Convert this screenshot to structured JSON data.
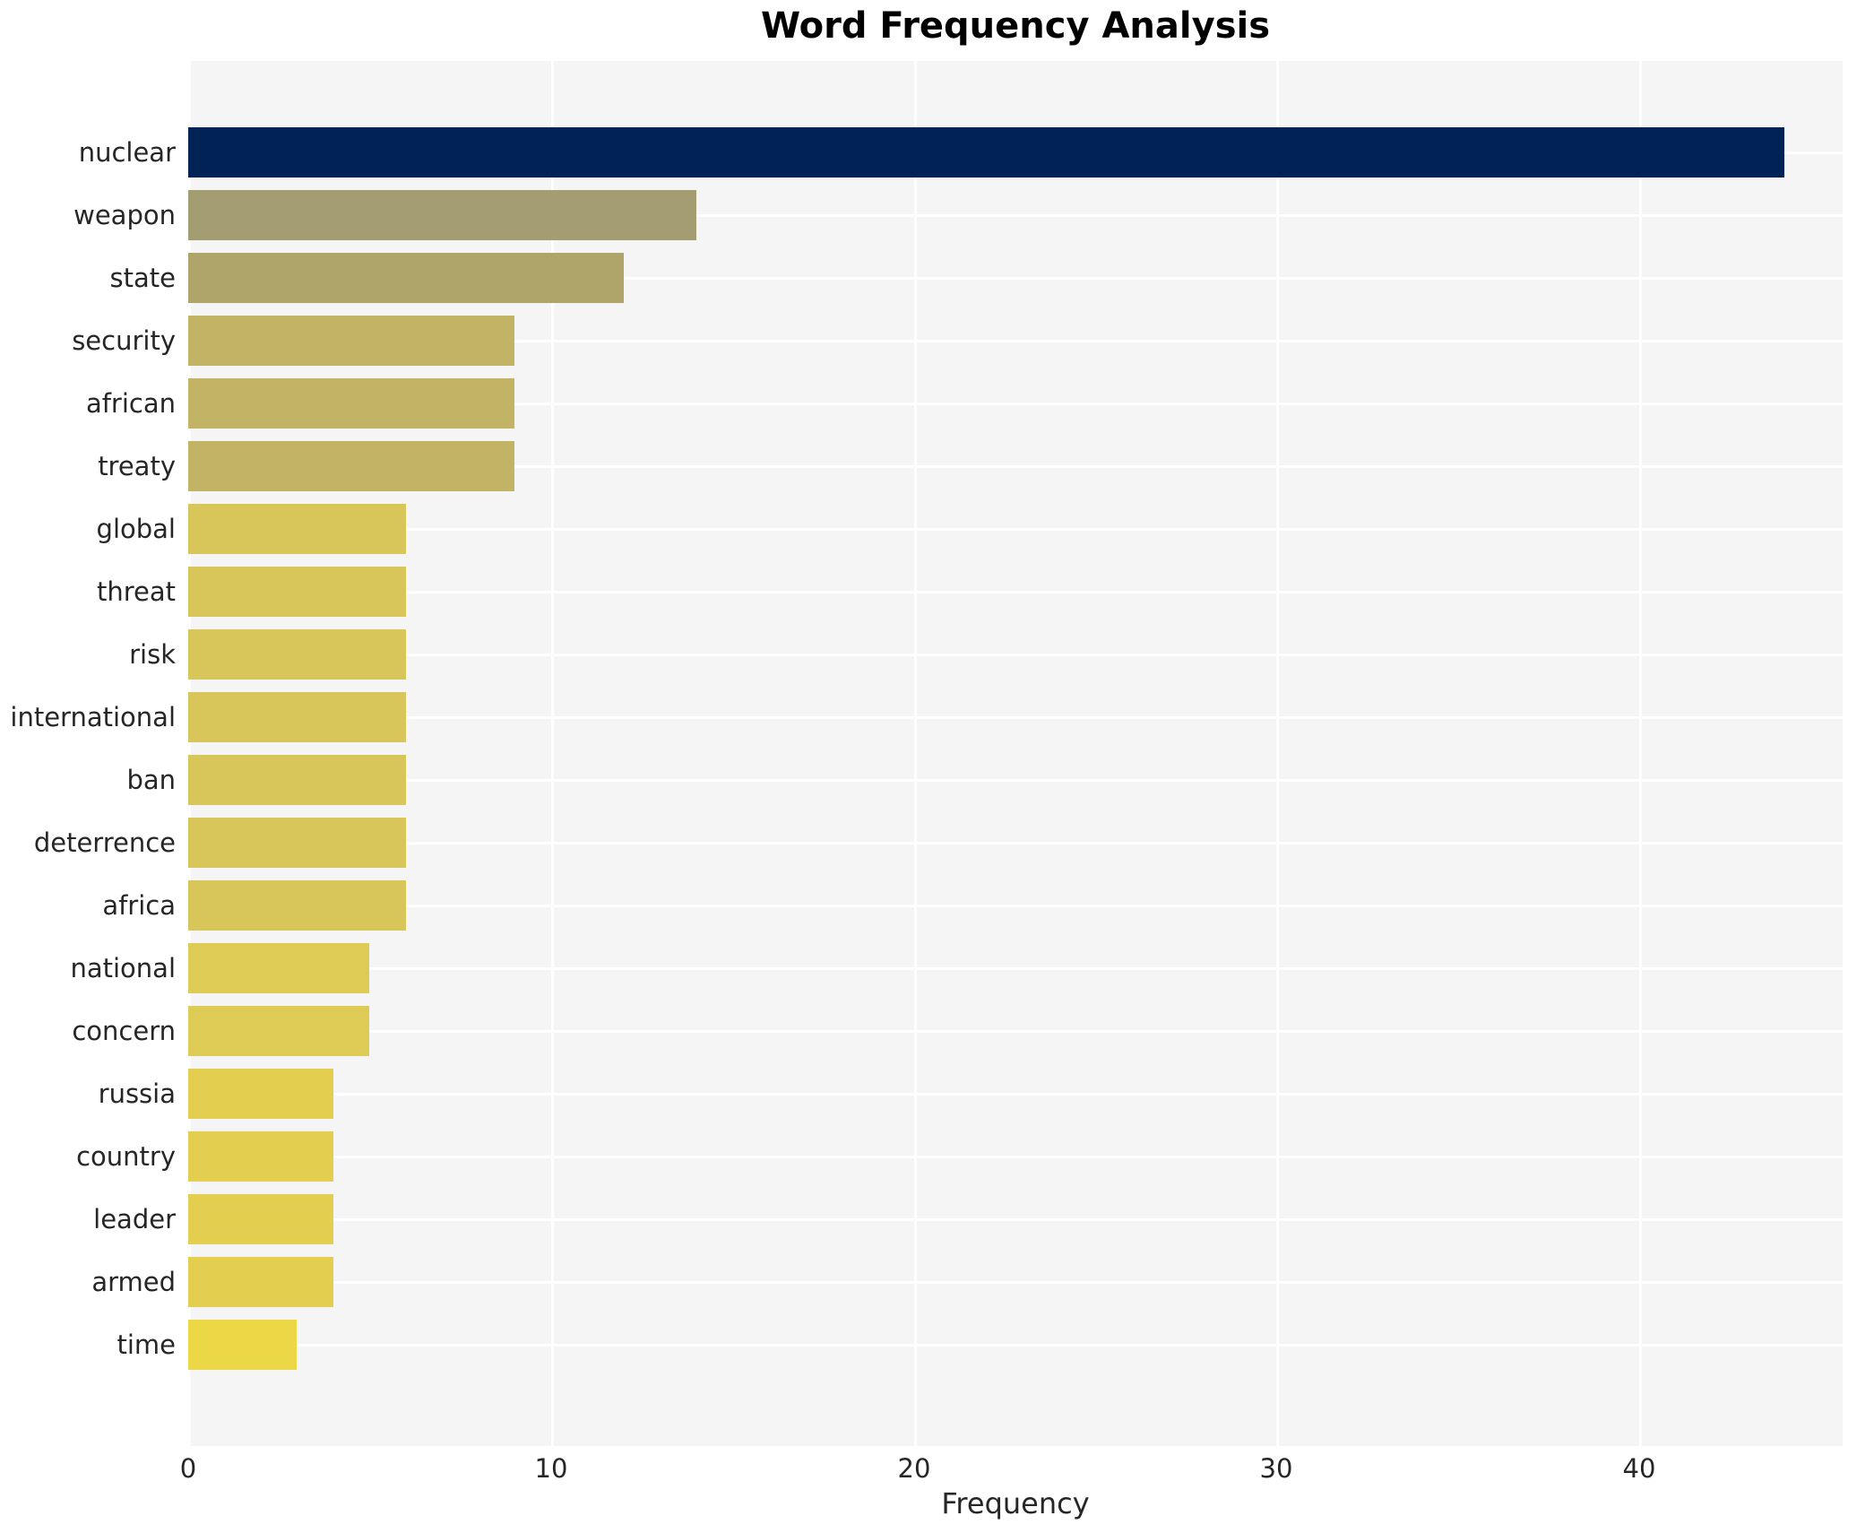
{
  "chart_data": {
    "type": "bar",
    "orientation": "horizontal",
    "title": "Word Frequency Analysis",
    "xlabel": "Frequency",
    "ylabel": "",
    "categories": [
      "nuclear",
      "weapon",
      "state",
      "security",
      "african",
      "treaty",
      "global",
      "threat",
      "risk",
      "international",
      "ban",
      "deterrence",
      "africa",
      "national",
      "concern",
      "russia",
      "country",
      "leader",
      "armed",
      "time"
    ],
    "values": [
      44,
      14,
      12,
      9,
      9,
      9,
      6,
      6,
      6,
      6,
      6,
      6,
      6,
      5,
      5,
      4,
      4,
      4,
      4,
      3
    ],
    "bar_colors": [
      "#002255",
      "#a59d72",
      "#afa56a",
      "#c3b364",
      "#c3b364",
      "#c3b364",
      "#d9c65a",
      "#d9c65a",
      "#d9c65a",
      "#d9c65a",
      "#d9c65a",
      "#d9c65a",
      "#d9c65a",
      "#decb55",
      "#decb55",
      "#e3ce4f",
      "#e3ce4f",
      "#e3ce4f",
      "#e3ce4f",
      "#ecd747"
    ],
    "xlim": [
      0,
      45.6
    ],
    "xticks": [
      0,
      10,
      20,
      30,
      40
    ],
    "grid": true,
    "legend": "none",
    "plot_bg": "#f5f5f5",
    "gridline_color": "#ffffff",
    "text_color": "#262626"
  }
}
